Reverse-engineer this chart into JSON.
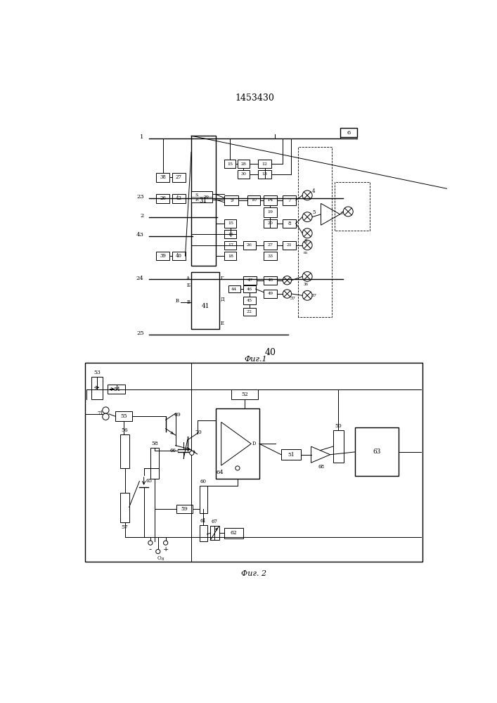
{
  "title": "1453430",
  "fig1_label": "Фиг.1",
  "fig2_label": "Фиг. 2",
  "label_40": "40",
  "bg_color": "#ffffff",
  "line_color": "#000000"
}
